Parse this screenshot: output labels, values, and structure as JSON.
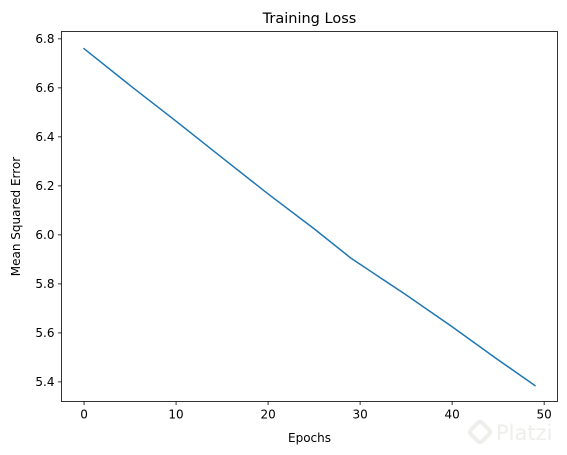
{
  "chart_data": {
    "type": "line",
    "title": "Training Loss",
    "xlabel": "Epochs",
    "ylabel": "Mean Squared Error",
    "xlim": [
      -2.45,
      51.45
    ],
    "ylim": [
      5.32,
      6.83
    ],
    "xticks": [
      0,
      10,
      20,
      30,
      40,
      50
    ],
    "yticks": [
      5.4,
      5.6,
      5.8,
      6.0,
      6.2,
      6.4,
      6.6,
      6.8
    ],
    "ytick_labels": [
      "5.4",
      "5.6",
      "5.8",
      "6.0",
      "6.2",
      "6.4",
      "6.6",
      "6.8"
    ],
    "grid": false,
    "series": [
      {
        "color": "#1f77b4",
        "x": [
          0,
          5,
          10,
          15,
          20,
          25,
          29,
          35,
          40,
          45,
          49
        ],
        "y": [
          6.76,
          6.61,
          6.464,
          6.315,
          6.167,
          6.025,
          5.905,
          5.755,
          5.625,
          5.49,
          5.385
        ]
      }
    ]
  },
  "watermark": {
    "text": "Platzi",
    "icon": "platzi-logo-icon"
  }
}
